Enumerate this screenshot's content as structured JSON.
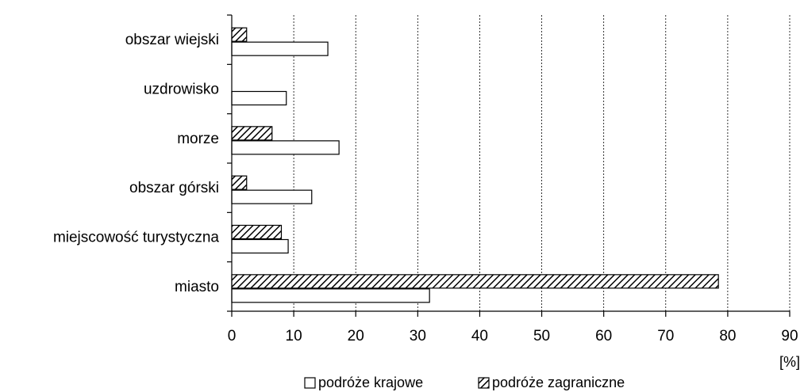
{
  "chart_data": {
    "type": "bar",
    "orientation": "horizontal",
    "categories": [
      "obszar wiejski",
      "uzdrowisko",
      "morze",
      "obszar górski",
      "miejscowość turystyczna",
      "miasto"
    ],
    "series": [
      {
        "name": "podróże krajowe",
        "values": [
          15.5,
          8.8,
          17.3,
          12.9,
          9.1,
          31.9
        ],
        "fill": "white"
      },
      {
        "name": "podróże zagraniczne",
        "values": [
          2.4,
          0,
          6.5,
          2.4,
          8.0,
          78.5
        ],
        "fill": "hatched"
      }
    ],
    "xlim": [
      0,
      90
    ],
    "xticks": [
      "0",
      "10",
      "20",
      "30",
      "40",
      "50",
      "60",
      "70",
      "80",
      "90"
    ],
    "xunit": "[%]",
    "grid": "vertical dashed",
    "legend_position": "bottom",
    "colors": {
      "bar_edge": "#000000",
      "hatch": "#000000",
      "grid": "#000000",
      "background": "#ffffff"
    }
  }
}
